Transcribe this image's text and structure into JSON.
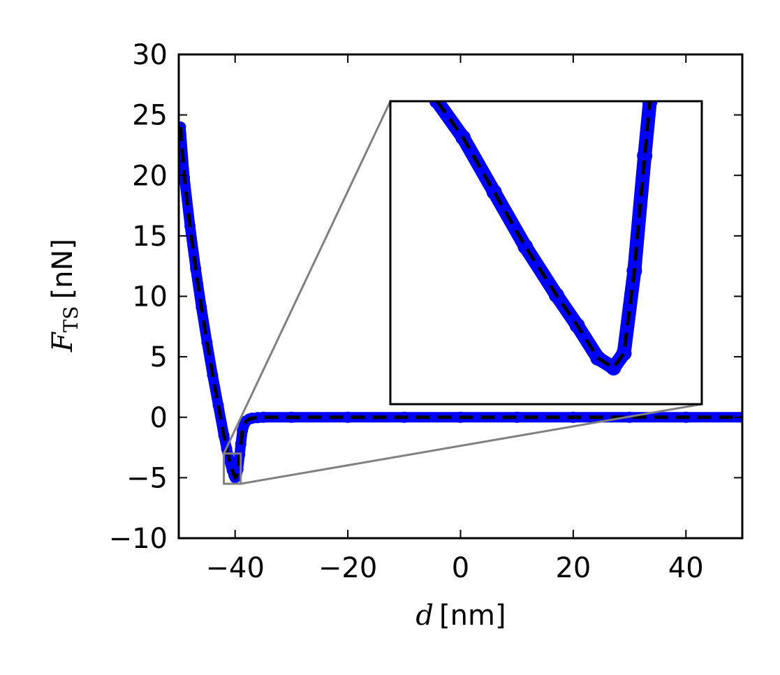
{
  "chart_data": {
    "type": "scatter",
    "title": "",
    "xlabel": {
      "symbol": "d",
      "unit": "[nm]"
    },
    "ylabel": {
      "symbol": "F",
      "subscript": "TS",
      "unit": "[nN]"
    },
    "xlim": [
      -50,
      50
    ],
    "ylim": [
      -10,
      30
    ],
    "xticks": [
      -40,
      -20,
      0,
      20,
      40
    ],
    "xtick_labels": [
      "−40",
      "−20",
      "0",
      "20",
      "40"
    ],
    "yticks": [
      -10,
      -5,
      0,
      5,
      10,
      15,
      20,
      25,
      30
    ],
    "ytick_labels": [
      "−10",
      "−5",
      "0",
      "5",
      "10",
      "15",
      "20",
      "25",
      "30"
    ],
    "grid": false,
    "legend": "none",
    "series": [
      {
        "style": "scatter-markers",
        "color": "#0000ff",
        "x": [
          -49.7,
          -49,
          -48,
          -47,
          -46,
          -45,
          -44,
          -43,
          -42,
          -41.5,
          -41,
          -40.5,
          -40.2,
          -40,
          -39.8,
          -39.5,
          -39.2,
          -39,
          -38.7,
          -38.3,
          -38,
          -37.5,
          -37,
          -36,
          -35,
          -30,
          -20,
          -10,
          0,
          10,
          20,
          30,
          40,
          50
        ],
        "y": [
          24,
          19.8,
          15.8,
          12.3,
          9.1,
          6.2,
          3.5,
          1.0,
          -1.5,
          -2.6,
          -3.6,
          -4.4,
          -4.8,
          -5.0,
          -4.9,
          -4.3,
          -3.1,
          -2.2,
          -1.1,
          -0.5,
          -0.3,
          -0.15,
          -0.08,
          -0.03,
          0,
          0,
          0,
          0,
          0,
          0,
          0,
          0,
          0,
          0
        ]
      },
      {
        "style": "dashed-line",
        "color": "#000000",
        "x": [
          -49.7,
          -49,
          -48,
          -47,
          -46,
          -45,
          -44,
          -43,
          -42,
          -41.5,
          -41,
          -40.5,
          -40.2,
          -40,
          -39.8,
          -39.5,
          -39.2,
          -39,
          -38.7,
          -38.3,
          -38,
          -37.5,
          -37,
          -36,
          -35,
          -30,
          -20,
          -10,
          0,
          10,
          20,
          30,
          40,
          50
        ],
        "y": [
          24,
          19.8,
          15.8,
          12.3,
          9.1,
          6.2,
          3.5,
          1.0,
          -1.5,
          -2.6,
          -3.6,
          -4.4,
          -4.8,
          -5.0,
          -4.9,
          -4.3,
          -3.1,
          -2.2,
          -1.1,
          -0.5,
          -0.3,
          -0.15,
          -0.08,
          -0.03,
          0,
          0,
          0,
          0,
          0,
          0,
          0,
          0,
          0,
          0
        ]
      }
    ],
    "inset": {
      "zoom_region": {
        "xlim": [
          -42,
          -39
        ],
        "ylim": [
          -5.5,
          -3
        ]
      },
      "x": [
        -41.55,
        -41.3,
        -41.0,
        -40.7,
        -40.4,
        -40.2,
        -40.0,
        -39.85,
        -39.75,
        -39.65,
        -39.55,
        -39.5
      ],
      "y": [
        -3.0,
        -3.3,
        -3.75,
        -4.2,
        -4.6,
        -4.85,
        -5.12,
        -5.2,
        -5.08,
        -4.4,
        -3.45,
        -3.0
      ]
    }
  }
}
